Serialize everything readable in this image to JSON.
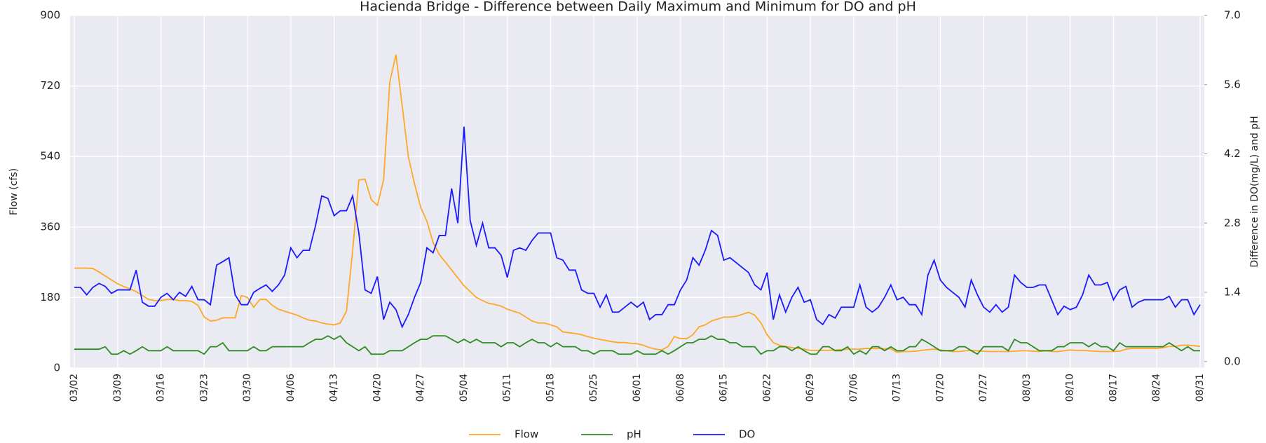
{
  "chart_data": {
    "type": "line",
    "title": "Hacienda Bridge - Difference between Daily Maximum and Minimum for DO and pH",
    "ylabel": "Flow (cfs)",
    "y2label": "Difference in DO(mg/L) and pH",
    "categories": [
      "03/02",
      null,
      null,
      null,
      null,
      null,
      null,
      "03/09",
      null,
      null,
      null,
      null,
      null,
      null,
      "03/16",
      null,
      null,
      null,
      null,
      null,
      null,
      "03/23",
      null,
      null,
      null,
      null,
      null,
      null,
      "03/30",
      null,
      null,
      null,
      null,
      null,
      null,
      "04/06",
      null,
      null,
      null,
      null,
      null,
      null,
      "04/13",
      null,
      null,
      null,
      null,
      null,
      null,
      "04/20",
      null,
      null,
      null,
      null,
      null,
      null,
      "04/27",
      null,
      null,
      null,
      null,
      null,
      null,
      "05/04",
      null,
      null,
      null,
      null,
      null,
      null,
      "05/11",
      null,
      null,
      null,
      null,
      null,
      null,
      "05/18",
      null,
      null,
      null,
      null,
      null,
      null,
      "05/25",
      null,
      null,
      null,
      null,
      null,
      null,
      "06/01",
      null,
      null,
      null,
      null,
      null,
      null,
      "06/08",
      null,
      null,
      null,
      null,
      null,
      null,
      "06/15",
      null,
      null,
      null,
      null,
      null,
      null,
      "06/22",
      null,
      null,
      null,
      null,
      null,
      null,
      "06/29",
      null,
      null,
      null,
      null,
      null,
      null,
      "07/06",
      null,
      null,
      null,
      null,
      null,
      null,
      "07/13",
      null,
      null,
      null,
      null,
      null,
      null,
      "07/20",
      null,
      null,
      null,
      null,
      null,
      null,
      "07/27",
      null,
      null,
      null,
      null,
      null,
      null,
      "08/03",
      null,
      null,
      null,
      null,
      null,
      null,
      "08/10",
      null,
      null,
      null,
      null,
      null,
      null,
      "08/17",
      null,
      null,
      null,
      null,
      null,
      null,
      "08/24",
      null,
      null,
      null,
      null,
      null,
      null,
      "08/31"
    ],
    "series": [
      {
        "name": "Flow",
        "color": "#ffa726",
        "axis": "y",
        "values": [
          255,
          255,
          255,
          254,
          245,
          235,
          225,
          215,
          208,
          202,
          195,
          185,
          175,
          172,
          172,
          175,
          175,
          172,
          172,
          170,
          160,
          130,
          120,
          122,
          128,
          128,
          128,
          185,
          180,
          155,
          175,
          175,
          160,
          150,
          145,
          140,
          135,
          128,
          122,
          120,
          115,
          112,
          110,
          115,
          145,
          300,
          480,
          482,
          430,
          415,
          480,
          730,
          800,
          670,
          540,
          470,
          410,
          375,
          320,
          290,
          270,
          250,
          230,
          210,
          195,
          180,
          172,
          165,
          162,
          158,
          150,
          145,
          140,
          130,
          120,
          115,
          115,
          110,
          105,
          92,
          90,
          88,
          85,
          80,
          76,
          73,
          70,
          67,
          65,
          65,
          63,
          62,
          58,
          52,
          48,
          46,
          55,
          80,
          75,
          75,
          85,
          105,
          110,
          120,
          125,
          130,
          130,
          132,
          137,
          142,
          135,
          115,
          85,
          65,
          58,
          55,
          52,
          50,
          48,
          45,
          45,
          45,
          45,
          46,
          47,
          48,
          48,
          48,
          50,
          50,
          50,
          49,
          49,
          40,
          42,
          42,
          43,
          45,
          47,
          48,
          46,
          44,
          42,
          42,
          44,
          45,
          44,
          43,
          42,
          42,
          42,
          42,
          43,
          44,
          44,
          43,
          42,
          44,
          42,
          42,
          44,
          46,
          45,
          45,
          44,
          43,
          42,
          42,
          42,
          43,
          48,
          50,
          50,
          50,
          50,
          50,
          52,
          55,
          55,
          58,
          58,
          57,
          55
        ]
      },
      {
        "name": "pH",
        "color": "#2e8b22",
        "axis": "y2",
        "values": [
          0.25,
          0.25,
          0.25,
          0.25,
          0.25,
          0.3,
          0.15,
          0.15,
          0.22,
          0.15,
          0.22,
          0.3,
          0.22,
          0.22,
          0.22,
          0.3,
          0.22,
          0.22,
          0.22,
          0.22,
          0.22,
          0.15,
          0.3,
          0.3,
          0.38,
          0.22,
          0.22,
          0.22,
          0.22,
          0.3,
          0.22,
          0.22,
          0.3,
          0.3,
          0.3,
          0.3,
          0.3,
          0.3,
          0.38,
          0.45,
          0.45,
          0.52,
          0.45,
          0.52,
          0.38,
          0.3,
          0.22,
          0.3,
          0.15,
          0.15,
          0.15,
          0.22,
          0.22,
          0.22,
          0.3,
          0.38,
          0.45,
          0.45,
          0.52,
          0.52,
          0.52,
          0.45,
          0.38,
          0.45,
          0.38,
          0.45,
          0.38,
          0.38,
          0.38,
          0.3,
          0.38,
          0.38,
          0.3,
          0.38,
          0.45,
          0.38,
          0.38,
          0.3,
          0.38,
          0.3,
          0.3,
          0.3,
          0.22,
          0.22,
          0.15,
          0.22,
          0.22,
          0.22,
          0.15,
          0.15,
          0.15,
          0.22,
          0.15,
          0.15,
          0.15,
          0.22,
          0.15,
          0.22,
          0.3,
          0.38,
          0.38,
          0.45,
          0.45,
          0.52,
          0.45,
          0.45,
          0.38,
          0.38,
          0.3,
          0.3,
          0.3,
          0.15,
          0.22,
          0.22,
          0.3,
          0.3,
          0.22,
          0.3,
          0.22,
          0.15,
          0.15,
          0.3,
          0.3,
          0.22,
          0.22,
          0.3,
          0.15,
          0.22,
          0.15,
          0.3,
          0.3,
          0.22,
          0.3,
          0.22,
          0.22,
          0.3,
          0.3,
          0.45,
          0.38,
          0.3,
          0.22,
          0.22,
          0.22,
          0.3,
          0.3,
          0.22,
          0.15,
          0.3,
          0.3,
          0.3,
          0.3,
          0.22,
          0.45,
          0.38,
          0.38,
          0.3,
          0.22,
          0.22,
          0.22,
          0.3,
          0.3,
          0.38,
          0.38,
          0.38,
          0.3,
          0.38,
          0.3,
          0.3,
          0.22,
          0.38,
          0.3,
          0.3,
          0.3,
          0.3,
          0.3,
          0.3,
          0.3,
          0.38,
          0.3,
          0.22,
          0.3,
          0.22,
          0.22
        ]
      },
      {
        "name": "DO",
        "color": "#1a1aff",
        "axis": "y2",
        "values": [
          1.5,
          1.5,
          1.35,
          1.5,
          1.58,
          1.52,
          1.38,
          1.45,
          1.45,
          1.45,
          1.85,
          1.2,
          1.12,
          1.12,
          1.3,
          1.38,
          1.25,
          1.4,
          1.32,
          1.52,
          1.25,
          1.25,
          1.15,
          1.95,
          2.02,
          2.1,
          1.35,
          1.15,
          1.15,
          1.4,
          1.48,
          1.55,
          1.42,
          1.55,
          1.75,
          2.3,
          2.1,
          2.25,
          2.25,
          2.75,
          3.35,
          3.3,
          2.95,
          3.05,
          3.05,
          3.35,
          2.6,
          1.45,
          1.38,
          1.72,
          0.85,
          1.2,
          1.05,
          0.7,
          0.95,
          1.3,
          1.6,
          2.3,
          2.2,
          2.55,
          2.55,
          3.5,
          2.8,
          4.75,
          2.85,
          2.35,
          2.8,
          2.3,
          2.3,
          2.15,
          1.7,
          2.25,
          2.3,
          2.25,
          2.45,
          2.6,
          2.6,
          2.6,
          2.1,
          2.05,
          1.85,
          1.85,
          1.45,
          1.38,
          1.38,
          1.1,
          1.35,
          1.0,
          1.0,
          1.1,
          1.2,
          1.1,
          1.2,
          0.85,
          0.95,
          0.95,
          1.15,
          1.15,
          1.45,
          1.65,
          2.1,
          1.95,
          2.25,
          2.65,
          2.55,
          2.05,
          2.1,
          2.0,
          1.9,
          1.8,
          1.55,
          1.45,
          1.8,
          0.85,
          1.35,
          1.0,
          1.3,
          1.5,
          1.2,
          1.25,
          0.85,
          0.75,
          0.95,
          0.88,
          1.1,
          1.1,
          1.1,
          1.55,
          1.1,
          1.0,
          1.1,
          1.3,
          1.55,
          1.25,
          1.3,
          1.15,
          1.15,
          0.95,
          1.75,
          2.05,
          1.65,
          1.5,
          1.4,
          1.3,
          1.1,
          1.65,
          1.35,
          1.1,
          1.0,
          1.15,
          1.0,
          1.1,
          1.75,
          1.6,
          1.5,
          1.5,
          1.55,
          1.55,
          1.25,
          0.95,
          1.12,
          1.05,
          1.1,
          1.35,
          1.75,
          1.55,
          1.55,
          1.6,
          1.25,
          1.45,
          1.52,
          1.1,
          1.2,
          1.25,
          1.25,
          1.25,
          1.25,
          1.32,
          1.1,
          1.25,
          1.25,
          0.95,
          1.15
        ]
      }
    ],
    "ylim": [
      0,
      900
    ],
    "yticks": [
      0,
      180,
      360,
      540,
      720,
      900
    ],
    "y2lim": [
      -0.13,
      7.0
    ],
    "y2ticks": [
      {
        "value": 0,
        "label": "0.0"
      },
      1.4,
      2.8,
      4.2,
      5.6,
      {
        "value": 7,
        "label": "7.0"
      }
    ],
    "grid": true,
    "legend": "bottom"
  }
}
